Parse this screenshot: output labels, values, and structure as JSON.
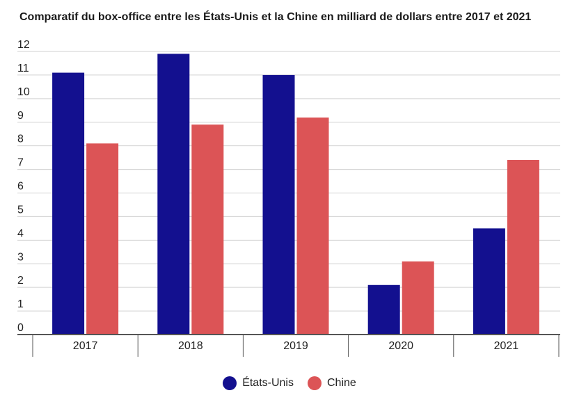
{
  "chart_data": {
    "type": "bar",
    "title": "Comparatif du box-office entre les États-Unis et la Chine en milliard de dollars entre 2017 et 2021",
    "xlabel": "",
    "ylabel": "",
    "categories": [
      "2017",
      "2018",
      "2019",
      "2020",
      "2021"
    ],
    "series": [
      {
        "name": "États-Unis",
        "color": "#13108f",
        "values": [
          11.1,
          11.9,
          11.0,
          2.1,
          4.5
        ]
      },
      {
        "name": "Chine",
        "color": "#dc5456",
        "values": [
          8.1,
          8.9,
          9.2,
          3.1,
          7.4
        ]
      }
    ],
    "ylim": [
      0,
      12
    ],
    "yticks": [
      "0",
      "1",
      "2",
      "3",
      "4",
      "5",
      "6",
      "7",
      "8",
      "9",
      "10",
      "11",
      "12"
    ],
    "grid": true,
    "legend_position": "bottom"
  }
}
